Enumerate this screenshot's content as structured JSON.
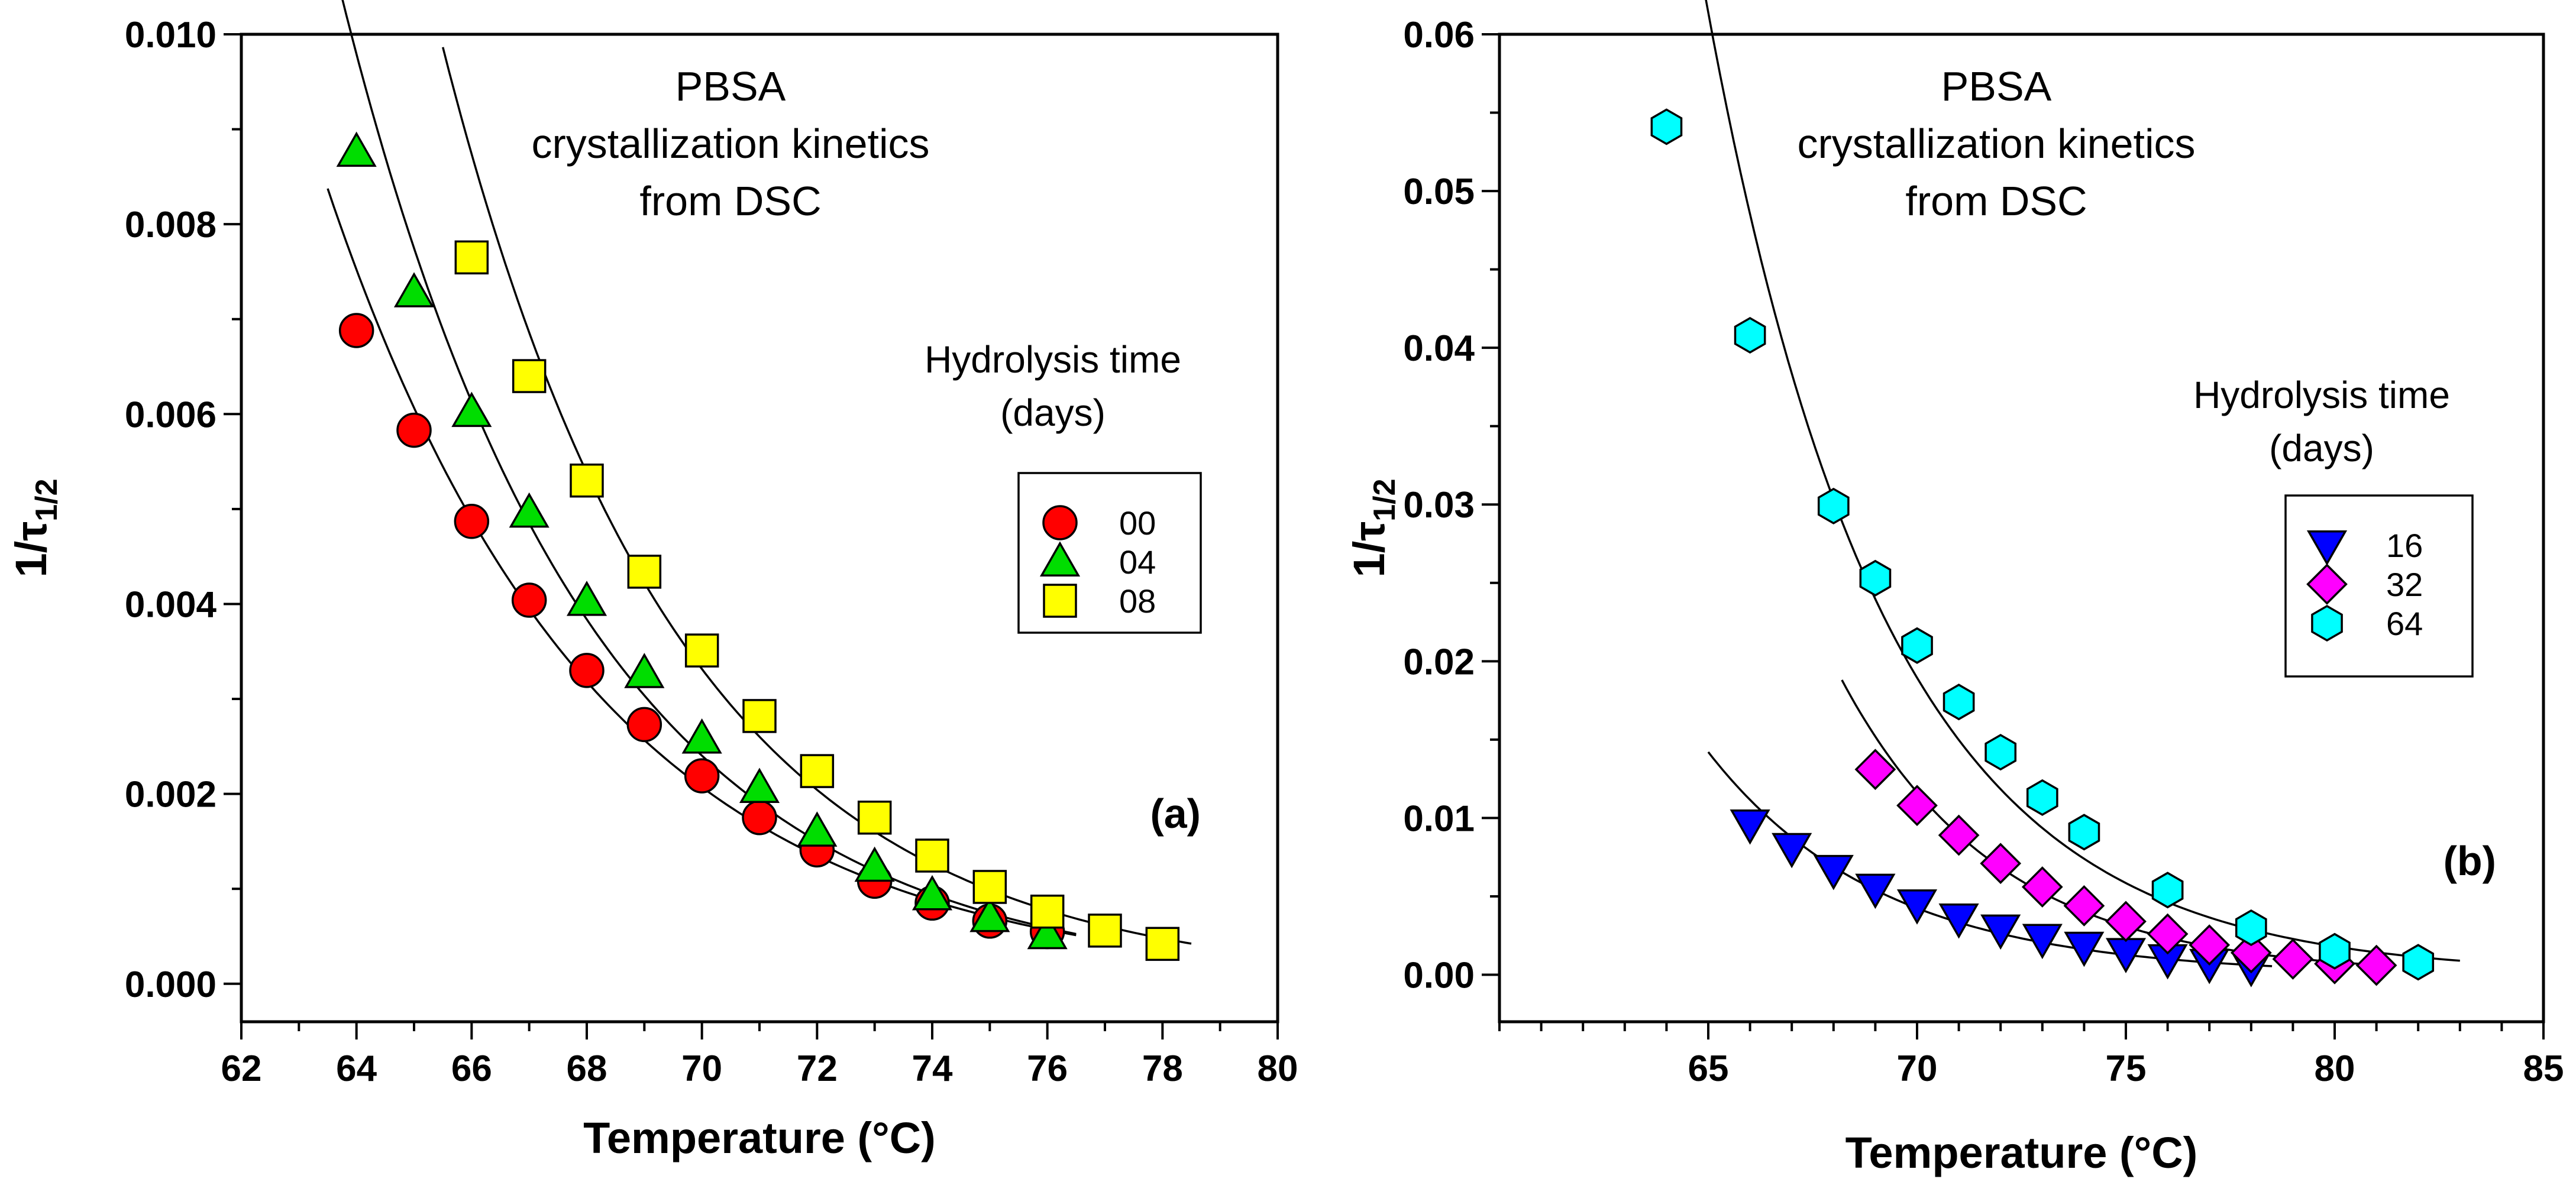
{
  "chart_data": [
    {
      "type": "scatter",
      "panel_label": "(a)",
      "annotation_lines": [
        "PBSA",
        "crystallization kinetics",
        "from DSC"
      ],
      "xlabel": "Temperature (°C)",
      "ylabel_main": "1/τ",
      "ylabel_sub": "1/2",
      "xlim": [
        62,
        80
      ],
      "ylim": [
        -0.0004,
        0.01
      ],
      "x_ticks": [
        62,
        64,
        66,
        68,
        70,
        72,
        74,
        76,
        78,
        80
      ],
      "x_tick_labels": [
        "62",
        "64",
        "66",
        "68",
        "70",
        "72",
        "74",
        "76",
        "78",
        "80"
      ],
      "y_ticks": [
        0.0,
        0.002,
        0.004,
        0.006,
        0.008,
        0.01
      ],
      "y_tick_labels": [
        "0.000",
        "0.002",
        "0.004",
        "0.006",
        "0.008",
        "0.010"
      ],
      "legend_title_lines": [
        "Hydrolysis time",
        "(days)"
      ],
      "legend_position": "right",
      "series": [
        {
          "name": "00",
          "marker": "circle",
          "color": "#ff0000",
          "x": [
            64,
            65,
            66,
            67,
            68,
            69,
            70,
            71,
            72,
            73,
            74,
            75,
            76
          ],
          "y": [
            0.00688,
            0.00583,
            0.00487,
            0.00404,
            0.0033,
            0.00273,
            0.00219,
            0.00175,
            0.00141,
            0.00108,
            0.00085,
            0.00066,
            0.00055
          ],
          "fit_range": [
            63.5,
            76.5
          ]
        },
        {
          "name": "04",
          "marker": "triangle-up",
          "color": "#00dd00",
          "x": [
            64,
            65,
            66,
            67,
            68,
            69,
            70,
            71,
            72,
            73,
            74,
            75,
            76
          ],
          "y": [
            0.00876,
            0.00728,
            0.00602,
            0.00496,
            0.00403,
            0.00327,
            0.00258,
            0.00206,
            0.0016,
            0.00123,
            0.00093,
            0.0007,
            0.00052
          ],
          "fit_range": [
            63.5,
            76.5
          ]
        },
        {
          "name": "08",
          "marker": "square",
          "color": "#ffff00",
          "x": [
            66,
            67,
            68,
            69,
            70,
            71,
            72,
            73,
            74,
            75,
            76,
            77,
            78
          ],
          "y": [
            0.00765,
            0.0064,
            0.0053,
            0.00434,
            0.00351,
            0.00282,
            0.00224,
            0.00175,
            0.00135,
            0.00102,
            0.00076,
            0.00056,
            0.00042
          ],
          "fit_range": [
            65.5,
            78.5
          ]
        }
      ]
    },
    {
      "type": "scatter",
      "panel_label": "(b)",
      "annotation_lines": [
        "PBSA",
        "crystallization kinetics",
        "from DSC"
      ],
      "xlabel": "Temperature (°C)",
      "ylabel_main": "1/τ",
      "ylabel_sub": "1/2",
      "xlim": [
        60,
        85
      ],
      "ylim": [
        -0.003,
        0.06
      ],
      "x_ticks": [
        65,
        70,
        75,
        80,
        85
      ],
      "x_tick_labels": [
        "65",
        "70",
        "75",
        "80",
        "85"
      ],
      "y_ticks": [
        0.0,
        0.01,
        0.02,
        0.03,
        0.04,
        0.05,
        0.06
      ],
      "y_tick_labels": [
        "0.00",
        "0.01",
        "0.02",
        "0.03",
        "0.04",
        "0.05",
        "0.06"
      ],
      "legend_title_lines": [
        "Hydrolysis time",
        "(days)"
      ],
      "legend_position": "right",
      "series": [
        {
          "name": "16",
          "marker": "triangle-down",
          "color": "#0000ff",
          "x": [
            66,
            67,
            68,
            69,
            70,
            71,
            72,
            73,
            74,
            75,
            76,
            77,
            78
          ],
          "y": [
            0.0096,
            0.0081,
            0.0067,
            0.0055,
            0.0045,
            0.0036,
            0.0029,
            0.0023,
            0.0018,
            0.0014,
            0.001,
            0.0007,
            0.0005
          ],
          "fit_range": [
            65,
            78.5
          ]
        },
        {
          "name": "32",
          "marker": "diamond",
          "color": "#ff00ff",
          "x": [
            69,
            70,
            71,
            72,
            73,
            74,
            75,
            76,
            77,
            78,
            79,
            80,
            81
          ],
          "y": [
            0.0131,
            0.0108,
            0.0089,
            0.0071,
            0.0056,
            0.0044,
            0.0034,
            0.0026,
            0.0019,
            0.0014,
            0.001,
            0.0007,
            0.0006
          ],
          "fit_range": [
            68.2,
            81.3
          ]
        },
        {
          "name": "64",
          "marker": "hexagon",
          "color": "#00ffff",
          "x": [
            64,
            66,
            68,
            69,
            70,
            71,
            72,
            73,
            74,
            76,
            78,
            80,
            82
          ],
          "y": [
            0.0541,
            0.0408,
            0.0299,
            0.0253,
            0.021,
            0.0174,
            0.0142,
            0.0113,
            0.0091,
            0.0054,
            0.003,
            0.0015,
            0.0008
          ],
          "fit_range": [
            63.5,
            83
          ]
        }
      ]
    }
  ]
}
